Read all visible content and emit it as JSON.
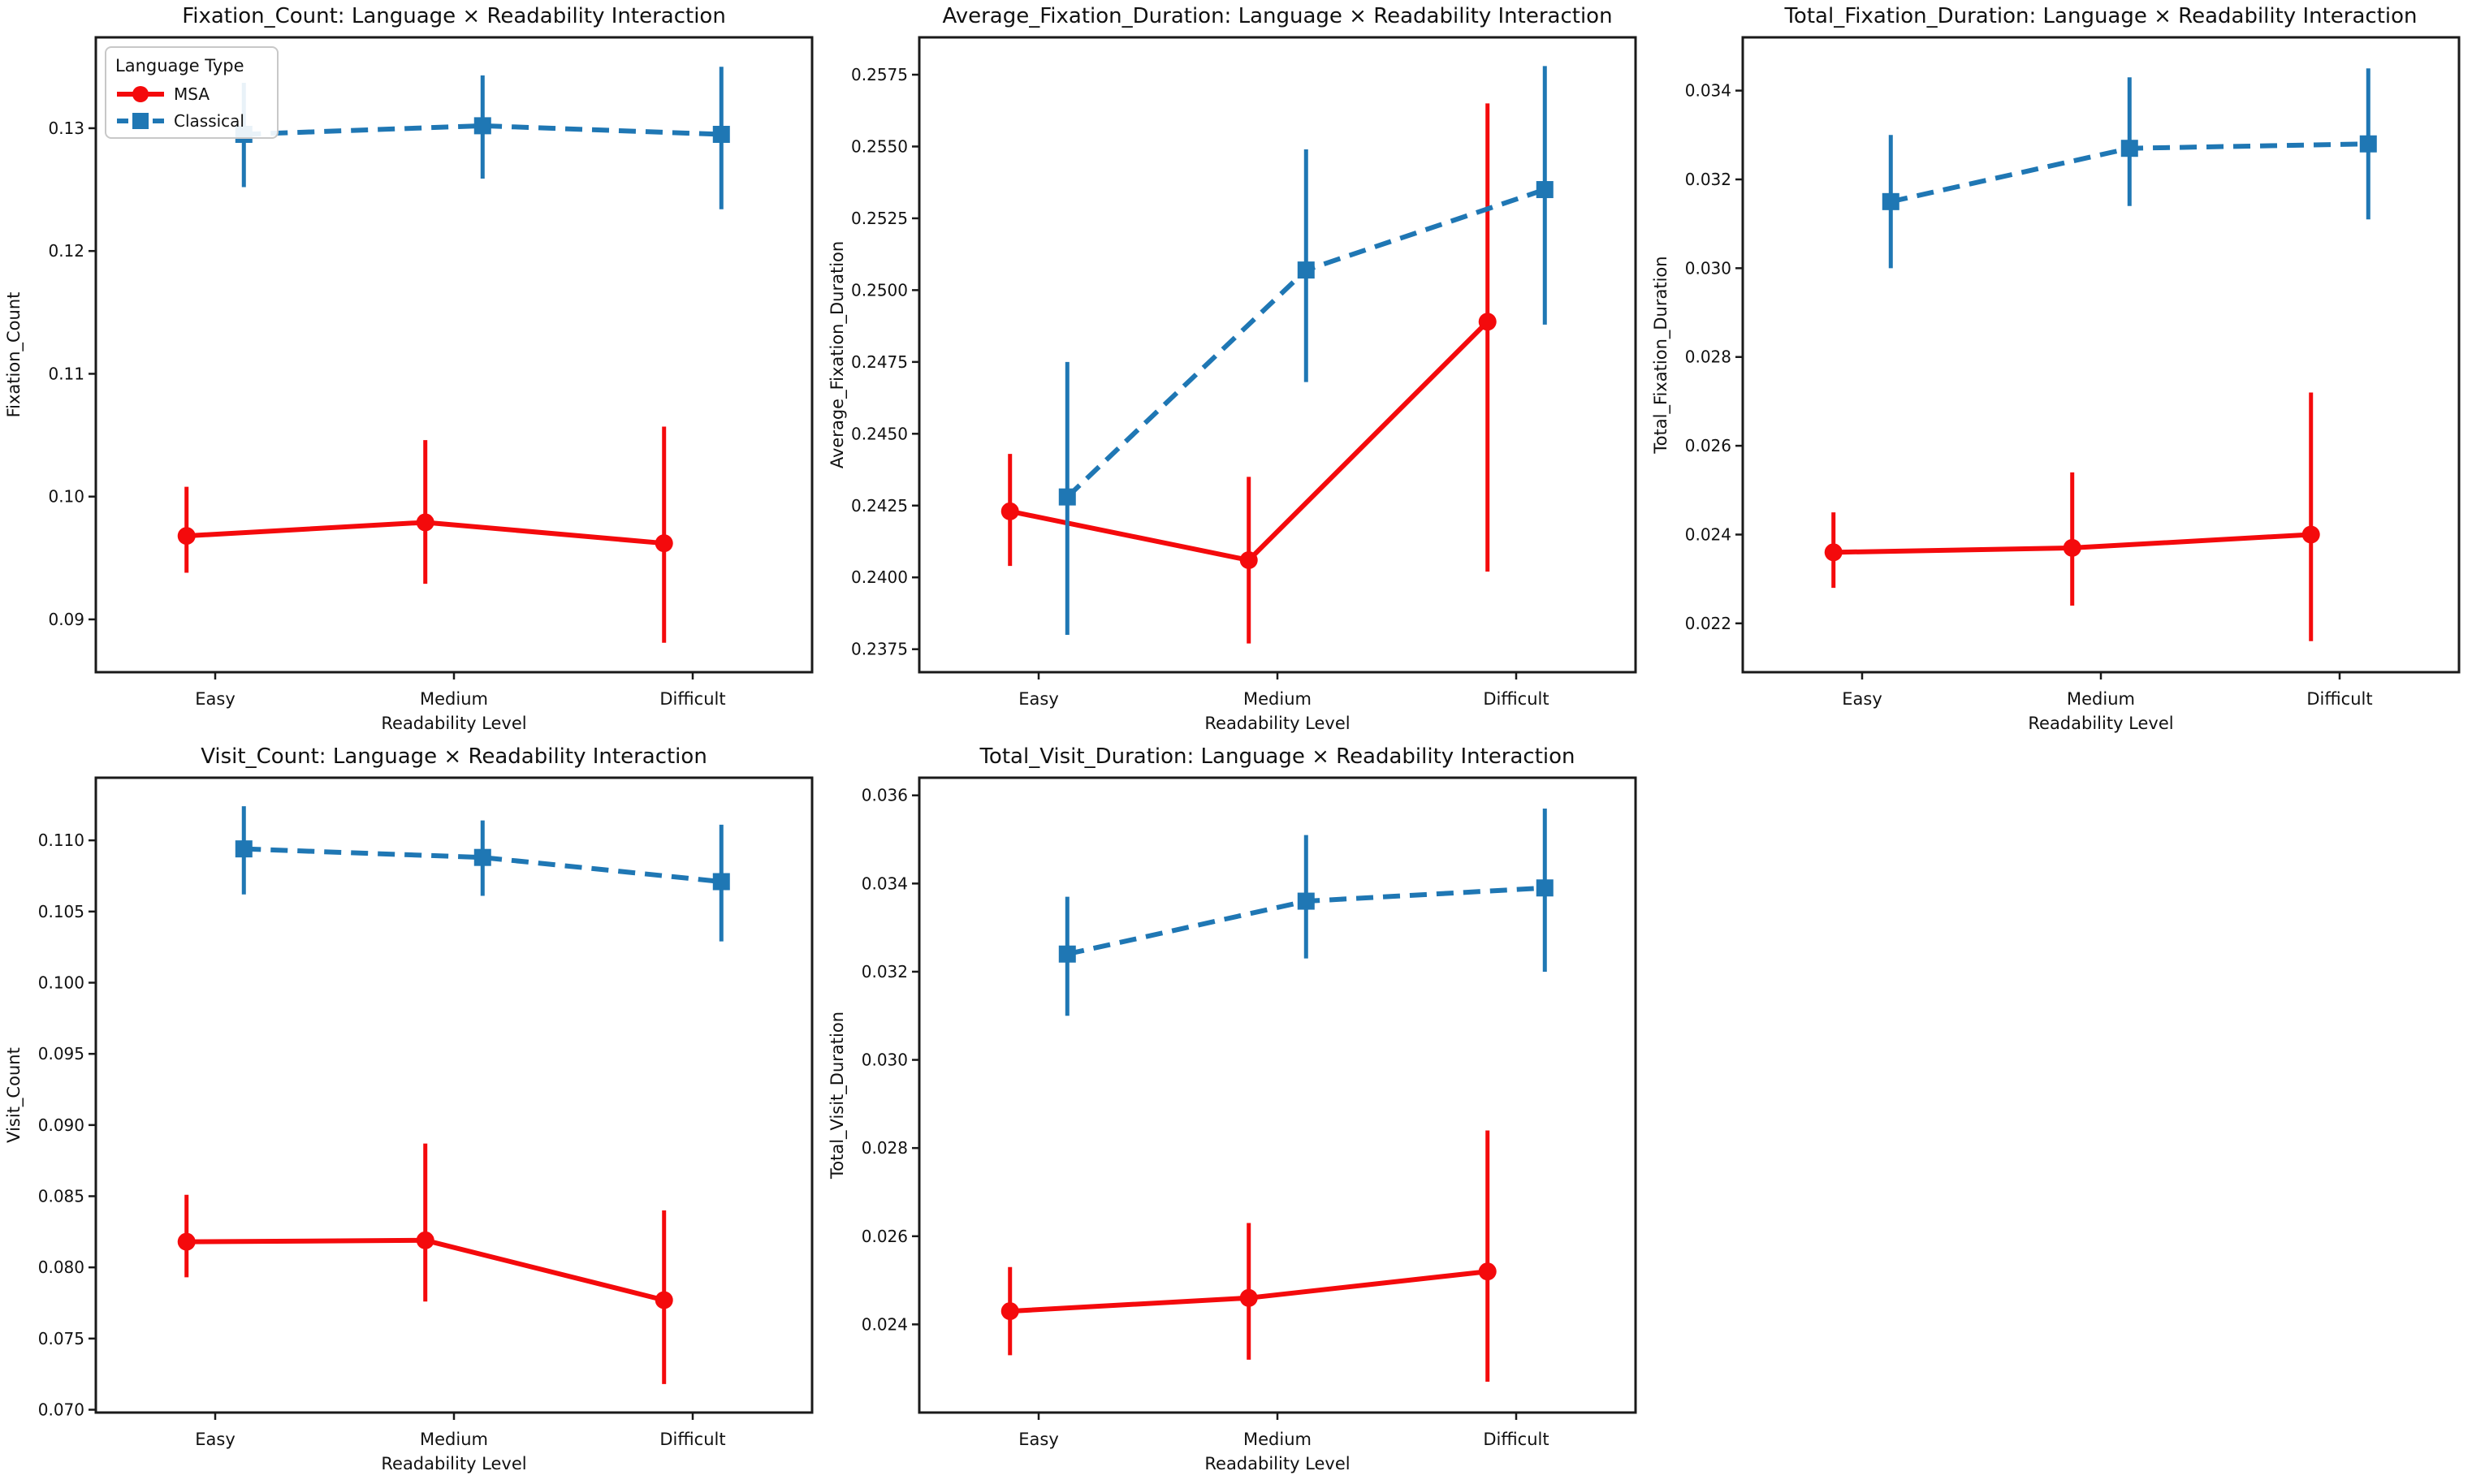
{
  "figure": {
    "xlabel": "Readability Level",
    "categories": [
      "Easy",
      "Medium",
      "Difficult"
    ],
    "legend": {
      "title": "Language Type",
      "entries": [
        {
          "label": "MSA",
          "color": "#f40a0c",
          "marker": "circle",
          "linestyle": "solid"
        },
        {
          "label": "Classical",
          "color": "#1f77b4",
          "marker": "square",
          "linestyle": "dashed"
        }
      ]
    },
    "colors": {
      "msa_red": "#f40a0c",
      "classical_blue": "#1f77b4",
      "axis": "#1a1a1a"
    }
  },
  "chart_data": [
    {
      "id": "fixation_count",
      "type": "line",
      "title": "Fixation_Count: Language × Readability Interaction",
      "ylabel": "Fixation_Count",
      "xlabel": "Readability Level",
      "categories": [
        "Easy",
        "Medium",
        "Difficult"
      ],
      "ylim": [
        0.0857,
        0.1374
      ],
      "yticks": [
        0.09,
        0.1,
        0.11,
        0.12,
        0.13
      ],
      "ytick_labels": [
        "0.09",
        "0.10",
        "0.11",
        "0.12",
        "0.13"
      ],
      "legend": true,
      "series": [
        {
          "name": "MSA",
          "color": "#f40a0c",
          "marker": "circle",
          "linestyle": "solid",
          "values": [
            0.0968,
            0.0979,
            0.0962
          ],
          "err_low": [
            0.0938,
            0.0929,
            0.0881
          ],
          "err_high": [
            0.1008,
            0.1046,
            0.1057
          ]
        },
        {
          "name": "Classical",
          "color": "#1f77b4",
          "marker": "square",
          "linestyle": "dashed",
          "values": [
            0.1295,
            0.1302,
            0.1295
          ],
          "err_low": [
            0.1252,
            0.1259,
            0.1234
          ],
          "err_high": [
            0.1337,
            0.1343,
            0.135
          ]
        }
      ]
    },
    {
      "id": "average_fixation_duration",
      "type": "line",
      "title": "Average_Fixation_Duration: Language × Readability Interaction",
      "ylabel": "Average_Fixation_Duration",
      "xlabel": "Readability Level",
      "categories": [
        "Easy",
        "Medium",
        "Difficult"
      ],
      "ylim": [
        0.2367,
        0.2588
      ],
      "yticks": [
        0.2375,
        0.24,
        0.2425,
        0.245,
        0.2475,
        0.25,
        0.2525,
        0.255,
        0.2575
      ],
      "ytick_labels": [
        "0.2375",
        "0.2400",
        "0.2425",
        "0.2450",
        "0.2475",
        "0.2500",
        "0.2525",
        "0.2550",
        "0.2575"
      ],
      "legend": false,
      "series": [
        {
          "name": "MSA",
          "color": "#f40a0c",
          "marker": "circle",
          "linestyle": "solid",
          "values": [
            0.2423,
            0.2406,
            0.2489
          ],
          "err_low": [
            0.2404,
            0.2377,
            0.2402
          ],
          "err_high": [
            0.2443,
            0.2435,
            0.2565
          ]
        },
        {
          "name": "Classical",
          "color": "#1f77b4",
          "marker": "square",
          "linestyle": "dashed",
          "values": [
            0.2428,
            0.2507,
            0.2535
          ],
          "err_low": [
            0.238,
            0.2468,
            0.2488
          ],
          "err_high": [
            0.2475,
            0.2549,
            0.2578
          ]
        }
      ]
    },
    {
      "id": "total_fixation_duration",
      "type": "line",
      "title": "Total_Fixation_Duration: Language × Readability Interaction",
      "ylabel": "Total_Fixation_Duration",
      "xlabel": "Readability Level",
      "categories": [
        "Easy",
        "Medium",
        "Difficult"
      ],
      "ylim": [
        0.0209,
        0.0352
      ],
      "yticks": [
        0.022,
        0.024,
        0.026,
        0.028,
        0.03,
        0.032,
        0.034
      ],
      "ytick_labels": [
        "0.022",
        "0.024",
        "0.026",
        "0.028",
        "0.030",
        "0.032",
        "0.034"
      ],
      "legend": false,
      "series": [
        {
          "name": "MSA",
          "color": "#f40a0c",
          "marker": "circle",
          "linestyle": "solid",
          "values": [
            0.0236,
            0.0237,
            0.024
          ],
          "err_low": [
            0.0228,
            0.0224,
            0.0216
          ],
          "err_high": [
            0.0245,
            0.0254,
            0.0272
          ]
        },
        {
          "name": "Classical",
          "color": "#1f77b4",
          "marker": "square",
          "linestyle": "dashed",
          "values": [
            0.0315,
            0.0327,
            0.0328
          ],
          "err_low": [
            0.03,
            0.0314,
            0.0311
          ],
          "err_high": [
            0.033,
            0.0343,
            0.0345
          ]
        }
      ]
    },
    {
      "id": "visit_count",
      "type": "line",
      "title": "Visit_Count: Language × Readability Interaction",
      "ylabel": "Visit_Count",
      "xlabel": "Readability Level",
      "categories": [
        "Easy",
        "Medium",
        "Difficult"
      ],
      "ylim": [
        0.0698,
        0.1144
      ],
      "yticks": [
        0.07,
        0.075,
        0.08,
        0.085,
        0.09,
        0.095,
        0.1,
        0.105,
        0.11
      ],
      "ytick_labels": [
        "0.070",
        "0.075",
        "0.080",
        "0.085",
        "0.090",
        "0.095",
        "0.100",
        "0.105",
        "0.110"
      ],
      "legend": false,
      "series": [
        {
          "name": "MSA",
          "color": "#f40a0c",
          "marker": "circle",
          "linestyle": "solid",
          "values": [
            0.0818,
            0.0819,
            0.0777
          ],
          "err_low": [
            0.0793,
            0.0776,
            0.0718
          ],
          "err_high": [
            0.0851,
            0.0887,
            0.084
          ]
        },
        {
          "name": "Classical",
          "color": "#1f77b4",
          "marker": "square",
          "linestyle": "dashed",
          "values": [
            0.1094,
            0.1088,
            0.1071
          ],
          "err_low": [
            0.1062,
            0.1061,
            0.1029
          ],
          "err_high": [
            0.1124,
            0.1114,
            0.1111
          ]
        }
      ]
    },
    {
      "id": "total_visit_duration",
      "type": "line",
      "title": "Total_Visit_Duration: Language × Readability Interaction",
      "ylabel": "Total_Visit_Duration",
      "xlabel": "Readability Level",
      "categories": [
        "Easy",
        "Medium",
        "Difficult"
      ],
      "ylim": [
        0.022,
        0.0364
      ],
      "yticks": [
        0.024,
        0.026,
        0.028,
        0.03,
        0.032,
        0.034,
        0.036
      ],
      "ytick_labels": [
        "0.024",
        "0.026",
        "0.028",
        "0.030",
        "0.032",
        "0.034",
        "0.036"
      ],
      "legend": false,
      "series": [
        {
          "name": "MSA",
          "color": "#f40a0c",
          "marker": "circle",
          "linestyle": "solid",
          "values": [
            0.0243,
            0.0246,
            0.0252
          ],
          "err_low": [
            0.0233,
            0.0232,
            0.0227
          ],
          "err_high": [
            0.0253,
            0.0263,
            0.0284
          ]
        },
        {
          "name": "Classical",
          "color": "#1f77b4",
          "marker": "square",
          "linestyle": "dashed",
          "values": [
            0.0324,
            0.0336,
            0.0339
          ],
          "err_low": [
            0.031,
            0.0323,
            0.032
          ],
          "err_high": [
            0.0337,
            0.0351,
            0.0357
          ]
        }
      ]
    }
  ]
}
